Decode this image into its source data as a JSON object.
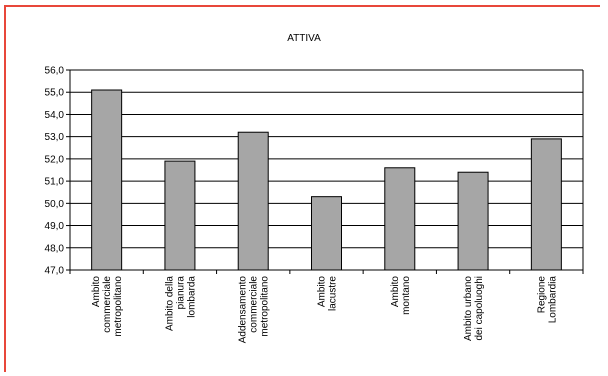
{
  "colors": {
    "frame": "#e8473a",
    "bar": "#a6a6a6",
    "bar_stroke": "#000000",
    "grid": "#000000"
  },
  "chart_data": {
    "type": "bar",
    "title": "ATTIVA",
    "xlabel": "",
    "ylabel": "",
    "ylim": [
      47.0,
      56.0
    ],
    "yticks": [
      "47,0",
      "48,0",
      "49,0",
      "50,0",
      "51,0",
      "52,0",
      "53,0",
      "54,0",
      "55,0",
      "56,0"
    ],
    "grid": true,
    "categories": [
      [
        "Ambito",
        "commerciale",
        "metropolitano"
      ],
      [
        "Ambito della",
        "pianura",
        "lombarda"
      ],
      [
        "Addensamento",
        "commerciale",
        "metropolitano"
      ],
      [
        "Ambito",
        "lacustre"
      ],
      [
        "Ambito",
        "montano"
      ],
      [
        "Ambito urbano",
        "dei capoluoghi"
      ],
      [
        "Regione",
        "Lombardia"
      ]
    ],
    "values": [
      55.1,
      51.9,
      53.2,
      50.3,
      51.6,
      51.4,
      52.9
    ]
  }
}
